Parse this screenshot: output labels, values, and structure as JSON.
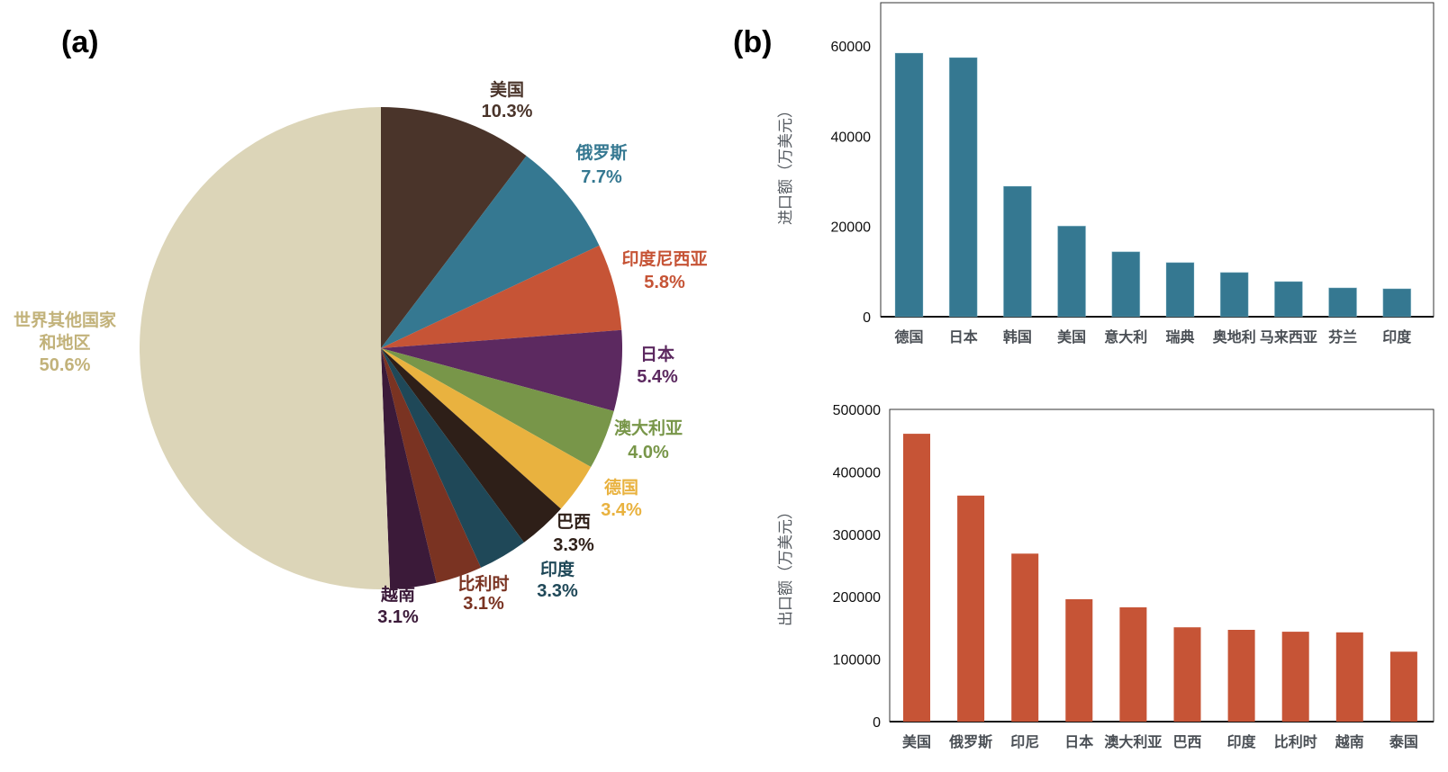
{
  "chart_data": [
    {
      "type": "pie",
      "panel_label": "(a)",
      "slices": [
        {
          "name": "美国",
          "pct_label": "10.3%",
          "value": 10.3,
          "color": "#4a342a"
        },
        {
          "name": "俄罗斯",
          "pct_label": "7.7%",
          "value": 7.7,
          "color": "#357891"
        },
        {
          "name": "印度尼西亚",
          "pct_label": "5.8%",
          "value": 5.8,
          "color": "#c65436"
        },
        {
          "name": "日本",
          "pct_label": "5.4%",
          "value": 5.4,
          "color": "#5c2960"
        },
        {
          "name": "澳大利亚",
          "pct_label": "4.0%",
          "value": 4.0,
          "color": "#789649"
        },
        {
          "name": "德国",
          "pct_label": "3.4%",
          "value": 3.4,
          "color": "#e9b23f"
        },
        {
          "name": "巴西",
          "pct_label": "3.3%",
          "value": 3.3,
          "color": "#2e1f18"
        },
        {
          "name": "印度",
          "pct_label": "3.3%",
          "value": 3.3,
          "color": "#1f4858"
        },
        {
          "name": "比利时",
          "pct_label": "3.1%",
          "value": 3.1,
          "color": "#7a3322"
        },
        {
          "name": "越南",
          "pct_label": "3.1%",
          "value": 3.1,
          "color": "#3b1a39"
        },
        {
          "name": "世界其他国家和地区",
          "name_lines": [
            "世界其他国家",
            "和地区"
          ],
          "pct_label": "50.6%",
          "value": 50.6,
          "color": "#dcd5b8",
          "label_color": "#c2b27a"
        }
      ],
      "label_colors": {
        "美国": "#4a342a",
        "俄罗斯": "#357891",
        "印度尼西亚": "#c65436",
        "日本": "#5c2960",
        "澳大利亚": "#789649",
        "德国": "#e9b23f",
        "巴西": "#2e1f18",
        "印度": "#1f4858",
        "比利时": "#7a3322",
        "越南": "#3b1a39",
        "世界其他国家和地区": "#c2b27a"
      }
    },
    {
      "type": "bar",
      "panel_label": "(b)",
      "ylabel": "进口额（万美元）",
      "xlabel": "",
      "ylim": [
        0,
        70000
      ],
      "yticks": [
        0,
        20000,
        40000,
        60000
      ],
      "ytick_labels": [
        "0",
        "20000",
        "40000",
        "60000"
      ],
      "categories": [
        "德国",
        "日本",
        "韩国",
        "美国",
        "意大利",
        "瑞典",
        "奥地利",
        "马来西亚",
        "芬兰",
        "印度"
      ],
      "values": [
        58400,
        57400,
        28900,
        20100,
        14400,
        12000,
        9800,
        7800,
        6400,
        6200
      ],
      "color": "#357891",
      "grid": false
    },
    {
      "type": "bar",
      "ylabel": "出口额（万美元）",
      "xlabel": "",
      "ylim": [
        0,
        500000
      ],
      "yticks": [
        0,
        100000,
        200000,
        300000,
        400000,
        500000
      ],
      "ytick_labels": [
        "0",
        "100000",
        "200000",
        "300000",
        "400000",
        "500000"
      ],
      "categories": [
        "美国",
        "俄罗斯",
        "印尼",
        "日本",
        "澳大利亚",
        "巴西",
        "印度",
        "比利时",
        "越南",
        "泰国"
      ],
      "values": [
        461000,
        362000,
        269000,
        196000,
        183000,
        151000,
        147000,
        144000,
        143000,
        112000
      ],
      "color": "#c65436",
      "grid": false
    }
  ]
}
